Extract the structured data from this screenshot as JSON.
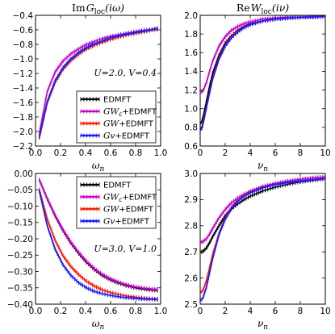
{
  "chart_data": [
    {
      "id": "tl",
      "type": "line",
      "title": "Im G_loc(iω)",
      "title_parts": {
        "pre": "Im",
        "main": "G",
        "sub": "loc",
        "arg": "(iω)"
      },
      "xlabel": "ω_n",
      "ylabel": "",
      "xlim": [
        0.0,
        1.0
      ],
      "ylim": [
        -2.2,
        -0.4
      ],
      "xticks": [
        0.0,
        0.2,
        0.4,
        0.6,
        0.8,
        1.0
      ],
      "xtick_labels": [
        "0.0",
        "0.2",
        "0.4",
        "0.6",
        "0.8",
        "1.0"
      ],
      "yticks": [
        -2.2,
        -2.0,
        -1.8,
        -1.6,
        -1.4,
        -1.2,
        -1.0,
        -0.8,
        -0.6,
        -0.4
      ],
      "ytick_labels": [
        "−2.2",
        "−2.0",
        "−1.8",
        "−1.6",
        "−1.4",
        "−1.2",
        "−1.0",
        "−0.8",
        "−0.6",
        "−0.4"
      ],
      "annotation": "U=2.0, V=0.4",
      "legend": true,
      "legend_position": "lower-right",
      "x": [
        0.031,
        0.094,
        0.157,
        0.22,
        0.283,
        0.346,
        0.408,
        0.471,
        0.534,
        0.597,
        0.66,
        0.723,
        0.785,
        0.848,
        0.911,
        0.974
      ],
      "series": [
        {
          "name": "EDMFT",
          "color": "#000000",
          "values": [
            -2.08,
            -1.6,
            -1.32,
            -1.14,
            -1.02,
            -0.93,
            -0.86,
            -0.81,
            -0.77,
            -0.73,
            -0.7,
            -0.67,
            -0.65,
            -0.63,
            -0.61,
            -0.59
          ]
        },
        {
          "name": "GW_c+EDMFT",
          "color": "#cc00cc",
          "values": [
            -2.02,
            -1.45,
            -1.18,
            -1.03,
            -0.93,
            -0.86,
            -0.8,
            -0.76,
            -0.72,
            -0.69,
            -0.67,
            -0.65,
            -0.63,
            -0.61,
            -0.6,
            -0.59
          ]
        },
        {
          "name": "GW+EDMFT",
          "color": "#ff1a00",
          "values": [
            -2.08,
            -1.6,
            -1.32,
            -1.14,
            -1.02,
            -0.93,
            -0.86,
            -0.81,
            -0.77,
            -0.73,
            -0.7,
            -0.67,
            -0.65,
            -0.63,
            -0.61,
            -0.59
          ]
        },
        {
          "name": "Gv+EDMFT",
          "color": "#1a1aff",
          "values": [
            -2.07,
            -1.59,
            -1.3,
            -1.12,
            -1.0,
            -0.91,
            -0.84,
            -0.79,
            -0.75,
            -0.71,
            -0.68,
            -0.66,
            -0.64,
            -0.62,
            -0.6,
            -0.58
          ]
        }
      ]
    },
    {
      "id": "tr",
      "type": "line",
      "title": "Re W_loc(iν)",
      "title_parts": {
        "pre": "Re",
        "main": "W",
        "sub": "loc",
        "arg": "(iν)"
      },
      "xlabel": "ν_n",
      "ylabel": "",
      "xlim": [
        0,
        10
      ],
      "ylim": [
        0.6,
        2.0
      ],
      "xticks": [
        0,
        2,
        4,
        6,
        8,
        10
      ],
      "xtick_labels": [
        "0",
        "2",
        "4",
        "6",
        "8",
        "10"
      ],
      "yticks": [
        0.6,
        0.8,
        1.0,
        1.2,
        1.4,
        1.6,
        1.8,
        2.0
      ],
      "ytick_labels": [
        "0.6",
        "0.8",
        "1.0",
        "1.2",
        "1.4",
        "1.6",
        "1.8",
        "2.0"
      ],
      "legend": false,
      "x": [
        0.0,
        0.126,
        0.25,
        0.5,
        0.75,
        1.0,
        1.5,
        2.0,
        2.5,
        3.0,
        3.5,
        4.0,
        5.0,
        6.0,
        7.0,
        8.0,
        9.0,
        10.0
      ],
      "series": [
        {
          "name": "EDMFT",
          "color": "#000000",
          "values": [
            0.84,
            0.86,
            0.92,
            1.08,
            1.24,
            1.38,
            1.57,
            1.7,
            1.78,
            1.84,
            1.88,
            1.91,
            1.94,
            1.96,
            1.97,
            1.98,
            1.98,
            1.99
          ]
        },
        {
          "name": "GW_c+EDMFT",
          "color": "#cc00cc",
          "values": [
            1.18,
            1.18,
            1.2,
            1.28,
            1.4,
            1.51,
            1.67,
            1.77,
            1.84,
            1.88,
            1.91,
            1.93,
            1.96,
            1.97,
            1.98,
            1.98,
            1.99,
            1.99
          ]
        },
        {
          "name": "GW+EDMFT",
          "color": "#ff1a00",
          "values": [
            0.78,
            0.8,
            0.86,
            1.02,
            1.18,
            1.33,
            1.54,
            1.68,
            1.77,
            1.83,
            1.87,
            1.9,
            1.94,
            1.96,
            1.97,
            1.98,
            1.98,
            1.99
          ]
        },
        {
          "name": "Gv+EDMFT",
          "color": "#1a1aff",
          "values": [
            0.77,
            0.79,
            0.85,
            1.01,
            1.17,
            1.32,
            1.53,
            1.67,
            1.76,
            1.82,
            1.87,
            1.9,
            1.94,
            1.96,
            1.97,
            1.98,
            1.98,
            1.99
          ]
        }
      ]
    },
    {
      "id": "bl",
      "type": "line",
      "title": "",
      "xlabel": "ω_n",
      "ylabel": "",
      "xlim": [
        0.0,
        1.0
      ],
      "ylim": [
        -0.4,
        0.0
      ],
      "xticks": [
        0.0,
        0.2,
        0.4,
        0.6,
        0.8,
        1.0
      ],
      "xtick_labels": [
        "0.0",
        "0.2",
        "0.4",
        "0.6",
        "0.8",
        "1.0"
      ],
      "yticks": [
        -0.4,
        -0.35,
        -0.3,
        -0.25,
        -0.2,
        -0.15,
        -0.1,
        -0.05,
        0.0
      ],
      "ytick_labels": [
        "−0.40",
        "−0.35",
        "−0.30",
        "−0.25",
        "−0.20",
        "−0.15",
        "−0.10",
        "−0.05",
        "0.00"
      ],
      "annotation": "U=3.0, V=1.0",
      "legend": true,
      "legend_position": "upper-right",
      "x": [
        0.031,
        0.094,
        0.157,
        0.22,
        0.283,
        0.346,
        0.408,
        0.471,
        0.534,
        0.597,
        0.66,
        0.723,
        0.785,
        0.848,
        0.911,
        0.974
      ],
      "series": [
        {
          "name": "EDMFT",
          "color": "#000000",
          "values": [
            -0.02,
            -0.078,
            -0.13,
            -0.175,
            -0.213,
            -0.245,
            -0.272,
            -0.294,
            -0.312,
            -0.325,
            -0.335,
            -0.343,
            -0.349,
            -0.353,
            -0.356,
            -0.358
          ]
        },
        {
          "name": "GW_c+EDMFT",
          "color": "#cc00cc",
          "values": [
            -0.02,
            -0.077,
            -0.128,
            -0.172,
            -0.21,
            -0.242,
            -0.269,
            -0.291,
            -0.309,
            -0.322,
            -0.332,
            -0.34,
            -0.346,
            -0.35,
            -0.353,
            -0.355
          ]
        },
        {
          "name": "GW+EDMFT",
          "color": "#ff1a00",
          "values": [
            -0.05,
            -0.14,
            -0.205,
            -0.252,
            -0.285,
            -0.31,
            -0.33,
            -0.345,
            -0.356,
            -0.364,
            -0.37,
            -0.375,
            -0.378,
            -0.381,
            -0.383,
            -0.384
          ]
        },
        {
          "name": "Gv+EDMFT",
          "color": "#1a1aff",
          "values": [
            -0.055,
            -0.16,
            -0.232,
            -0.28,
            -0.312,
            -0.335,
            -0.35,
            -0.361,
            -0.368,
            -0.373,
            -0.377,
            -0.38,
            -0.382,
            -0.384,
            -0.385,
            -0.386
          ]
        }
      ]
    },
    {
      "id": "br",
      "type": "line",
      "title": "",
      "xlabel": "ν_n",
      "ylabel": "",
      "xlim": [
        0,
        10
      ],
      "ylim": [
        2.5,
        3.0
      ],
      "xticks": [
        0,
        2,
        4,
        6,
        8,
        10
      ],
      "xtick_labels": [
        "0",
        "2",
        "4",
        "6",
        "8",
        "10"
      ],
      "yticks": [
        2.5,
        2.6,
        2.7,
        2.8,
        2.9,
        3.0
      ],
      "ytick_labels": [
        "2.5",
        "2.6",
        "2.7",
        "2.8",
        "2.9",
        "3.0"
      ],
      "legend": false,
      "x": [
        0.0,
        0.126,
        0.25,
        0.5,
        0.75,
        1.0,
        1.5,
        2.0,
        2.5,
        3.0,
        3.5,
        4.0,
        5.0,
        6.0,
        7.0,
        8.0,
        9.0,
        10.0
      ],
      "series": [
        {
          "name": "EDMFT",
          "color": "#000000",
          "values": [
            2.7,
            2.7,
            2.703,
            2.715,
            2.735,
            2.758,
            2.8,
            2.838,
            2.864,
            2.884,
            2.9,
            2.913,
            2.933,
            2.948,
            2.959,
            2.968,
            2.974,
            2.98
          ]
        },
        {
          "name": "GW_c+EDMFT",
          "color": "#cc00cc",
          "values": [
            2.738,
            2.738,
            2.74,
            2.75,
            2.768,
            2.79,
            2.83,
            2.862,
            2.888,
            2.906,
            2.92,
            2.932,
            2.95,
            2.962,
            2.971,
            2.978,
            2.983,
            2.987
          ]
        },
        {
          "name": "GW+EDMFT",
          "color": "#ff1a00",
          "values": [
            2.545,
            2.548,
            2.556,
            2.59,
            2.64,
            2.69,
            2.77,
            2.83,
            2.87,
            2.897,
            2.915,
            2.928,
            2.946,
            2.958,
            2.966,
            2.972,
            2.977,
            2.981
          ]
        },
        {
          "name": "Gv+EDMFT",
          "color": "#1a1aff",
          "values": [
            2.515,
            2.518,
            2.528,
            2.565,
            2.62,
            2.675,
            2.765,
            2.825,
            2.866,
            2.894,
            2.913,
            2.926,
            2.945,
            2.957,
            2.965,
            2.971,
            2.976,
            2.98
          ]
        }
      ]
    }
  ]
}
